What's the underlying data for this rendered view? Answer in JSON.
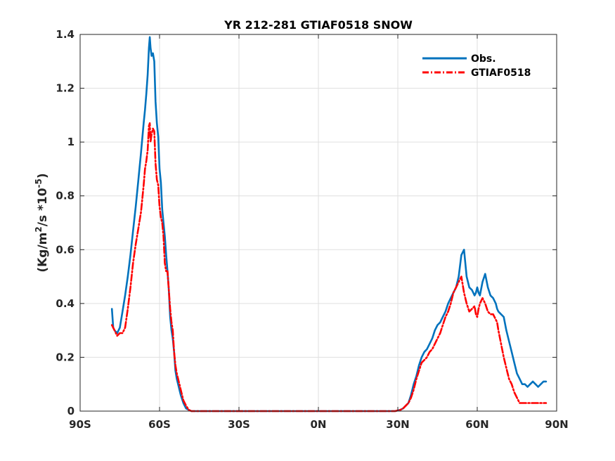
{
  "chart_data": {
    "type": "line",
    "title": "YR 212-281 GTIAF0518 SNOW",
    "xlabel": "",
    "ylabel_parts": {
      "prefix": "(Kg/m",
      "sup1": "2",
      "middle": "/s *10",
      "sup2": "-5",
      "suffix": ")"
    },
    "xlim": [
      -90,
      90
    ],
    "ylim": [
      0,
      1.4
    ],
    "x_ticks": [
      -90,
      -60,
      -30,
      0,
      30,
      60,
      90
    ],
    "x_tick_labels": [
      "90S",
      "60S",
      "30S",
      "0N",
      "30N",
      "60N",
      "90N"
    ],
    "y_ticks": [
      0,
      0.2,
      0.4,
      0.6,
      0.8,
      1,
      1.2,
      1.4
    ],
    "y_tick_labels": [
      "0",
      "0.2",
      "0.4",
      "0.6",
      "0.8",
      "1",
      "1.2",
      "1.4"
    ],
    "grid": true,
    "legend_position": "top-right",
    "series": [
      {
        "name": "Obs.",
        "color": "#0072BD",
        "style": "solid",
        "x": [
          -78,
          -77.5,
          -77,
          -76,
          -75,
          -74,
          -73,
          -72,
          -71,
          -70,
          -69,
          -68,
          -67,
          -66,
          -65.5,
          -65,
          -64.5,
          -64,
          -63.7,
          -63.4,
          -63,
          -62.5,
          -62,
          -61.5,
          -61,
          -60.5,
          -60,
          -59.5,
          -59,
          -58.5,
          -58,
          -57.5,
          -57,
          -56.5,
          -56,
          -55.5,
          -55,
          -54.5,
          -54,
          -53.5,
          -53,
          -52,
          -51,
          -50,
          -49,
          -48,
          -47,
          -46,
          -30,
          0,
          29,
          31,
          32,
          33,
          34,
          35,
          36,
          37,
          38,
          39,
          40,
          41,
          42,
          43,
          44,
          45,
          46,
          47,
          48,
          49,
          50,
          51,
          52,
          53,
          54,
          55,
          56,
          57,
          58,
          59,
          59.5,
          60,
          60.5,
          61,
          62,
          63,
          64,
          65,
          66,
          67,
          67.5,
          68,
          69,
          70,
          71,
          72,
          73,
          74,
          75,
          76,
          77,
          78,
          79,
          80,
          81,
          82,
          83,
          84,
          85,
          86
        ],
        "y": [
          0.38,
          0.31,
          0.3,
          0.29,
          0.31,
          0.37,
          0.43,
          0.5,
          0.58,
          0.67,
          0.76,
          0.86,
          0.96,
          1.07,
          1.12,
          1.18,
          1.25,
          1.35,
          1.39,
          1.35,
          1.32,
          1.33,
          1.3,
          1.15,
          1.07,
          1.02,
          0.9,
          0.85,
          0.75,
          0.7,
          0.65,
          0.58,
          0.52,
          0.45,
          0.35,
          0.3,
          0.27,
          0.22,
          0.15,
          0.12,
          0.1,
          0.06,
          0.03,
          0.01,
          0.005,
          0,
          0,
          0,
          0,
          0,
          0,
          0.005,
          0.01,
          0.02,
          0.03,
          0.06,
          0.1,
          0.13,
          0.17,
          0.2,
          0.22,
          0.23,
          0.25,
          0.27,
          0.3,
          0.32,
          0.33,
          0.35,
          0.37,
          0.4,
          0.42,
          0.44,
          0.46,
          0.5,
          0.58,
          0.6,
          0.5,
          0.46,
          0.45,
          0.43,
          0.44,
          0.46,
          0.44,
          0.43,
          0.48,
          0.51,
          0.46,
          0.43,
          0.42,
          0.4,
          0.38,
          0.37,
          0.36,
          0.35,
          0.3,
          0.26,
          0.22,
          0.18,
          0.14,
          0.12,
          0.1,
          0.1,
          0.09,
          0.1,
          0.11,
          0.1,
          0.09,
          0.1,
          0.11,
          0.11
        ],
        "y_note": ""
      },
      {
        "name": "GTIAF0518",
        "color": "#FF0000",
        "style": "dashdot",
        "x": [
          -78,
          -77.5,
          -77,
          -76,
          -75,
          -74,
          -73,
          -72,
          -71,
          -70,
          -69,
          -68,
          -67,
          -66,
          -65.5,
          -65,
          -64.5,
          -64,
          -63.7,
          -63.4,
          -63,
          -62.5,
          -62,
          -61.5,
          -61,
          -60.5,
          -60,
          -59.5,
          -59,
          -58.5,
          -58,
          -57.5,
          -57,
          -56.5,
          -56,
          -55.5,
          -55,
          -54.5,
          -54,
          -53.5,
          -53,
          -52,
          -51,
          -50,
          -49,
          -48,
          -47,
          -46,
          -30,
          0,
          29,
          31,
          32,
          33,
          34,
          35,
          36,
          37,
          38,
          39,
          40,
          41,
          42,
          43,
          44,
          45,
          46,
          47,
          48,
          49,
          50,
          51,
          52,
          53,
          54,
          55,
          56,
          57,
          58,
          59,
          59.5,
          60,
          60.5,
          61,
          62,
          63,
          64,
          65,
          66,
          67,
          67.5,
          68,
          69,
          70,
          71,
          72,
          73,
          74,
          75,
          76,
          77,
          78,
          79,
          80,
          81,
          82,
          83,
          84,
          85,
          86
        ],
        "y": [
          0.32,
          0.31,
          0.3,
          0.28,
          0.29,
          0.29,
          0.31,
          0.38,
          0.46,
          0.55,
          0.62,
          0.68,
          0.74,
          0.84,
          0.9,
          0.93,
          0.97,
          1.06,
          1.07,
          1.0,
          1.03,
          1.05,
          1.04,
          0.92,
          0.86,
          0.84,
          0.76,
          0.72,
          0.7,
          0.65,
          0.55,
          0.52,
          0.52,
          0.45,
          0.38,
          0.33,
          0.3,
          0.22,
          0.17,
          0.14,
          0.12,
          0.08,
          0.04,
          0.02,
          0.005,
          0,
          0,
          0,
          0,
          0,
          0,
          0.005,
          0.01,
          0.02,
          0.03,
          0.05,
          0.08,
          0.12,
          0.15,
          0.18,
          0.19,
          0.2,
          0.22,
          0.23,
          0.25,
          0.27,
          0.29,
          0.32,
          0.35,
          0.37,
          0.4,
          0.44,
          0.46,
          0.48,
          0.5,
          0.44,
          0.4,
          0.37,
          0.38,
          0.39,
          0.36,
          0.35,
          0.38,
          0.4,
          0.42,
          0.4,
          0.37,
          0.36,
          0.36,
          0.34,
          0.33,
          0.3,
          0.25,
          0.2,
          0.16,
          0.12,
          0.1,
          0.07,
          0.05,
          0.03,
          0.03,
          0.03,
          0.03,
          0.03,
          0.03,
          0.03,
          0.03,
          0.03,
          0.03,
          0.03
        ],
        "y_note": ""
      }
    ]
  }
}
